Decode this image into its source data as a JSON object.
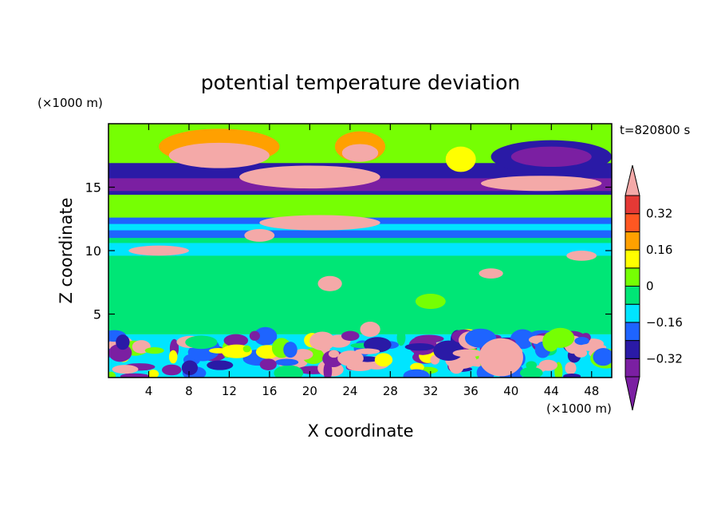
{
  "chart_data": {
    "type": "heatmap",
    "title": "potential temperature deviation",
    "xlabel": "X coordinate",
    "ylabel": "Z coordinate",
    "x_unit": "(×1000 m)",
    "y_unit": "(×1000 m)",
    "time_label": "t=820800 s",
    "xlim": [
      0,
      50
    ],
    "ylim": [
      0,
      20
    ],
    "x_ticks": [
      4,
      8,
      12,
      16,
      20,
      24,
      28,
      32,
      36,
      40,
      44,
      48
    ],
    "y_ticks": [
      5,
      10,
      15
    ],
    "colorbar": {
      "levels": [
        -0.4,
        -0.32,
        -0.24,
        -0.16,
        -0.08,
        0,
        0.08,
        0.16,
        0.24,
        0.32,
        0.4
      ],
      "labels": [
        "-0.32",
        "-0.16",
        "0",
        "0.16",
        "0.32"
      ],
      "label_values": [
        -0.32,
        -0.16,
        0,
        0.16,
        0.32
      ],
      "colors": [
        "#7b1fa2",
        "#2a1aa6",
        "#1e64ff",
        "#00e5ff",
        "#00e676",
        "#76ff03",
        "#ffff00",
        "#ffa000",
        "#ff5722",
        "#e53935",
        "#f4a9a8"
      ],
      "extend": "both"
    },
    "field_bands": [
      {
        "z": [
          0,
          3.4
        ],
        "description": "turbulent boundary layer"
      },
      {
        "z": [
          3.4,
          11
        ],
        "value": 0.02
      },
      {
        "z": [
          11,
          12.6
        ],
        "value": -0.08
      },
      {
        "z": [
          12.6,
          14.4
        ],
        "value": 0.1
      },
      {
        "z": [
          14.4,
          16.2
        ],
        "value": -0.36
      },
      {
        "z": [
          16.2,
          20
        ],
        "value": 0.05
      }
    ]
  }
}
